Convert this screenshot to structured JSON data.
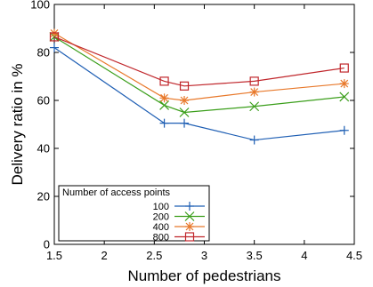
{
  "chart_data": {
    "type": "line",
    "title": "",
    "xlabel": "Number of pedestrians",
    "ylabel": "Delivery ratio in %",
    "xlim": [
      1.5,
      4.5
    ],
    "ylim": [
      0,
      100
    ],
    "xticks": [
      1.5,
      2,
      2.5,
      3,
      3.5,
      4,
      4.5
    ],
    "xtick_labels": [
      "1.5",
      "2",
      "2.5",
      "3",
      "3.5",
      "4",
      "4.5"
    ],
    "yticks": [
      0,
      20,
      40,
      60,
      80,
      100
    ],
    "ytick_labels": [
      "0",
      "20",
      "40",
      "60",
      "80",
      "100"
    ],
    "grid": false,
    "legend": {
      "title": "Number of access points",
      "placement": "bottom-left"
    },
    "series": [
      {
        "name": "100",
        "color": "#1f5fb4",
        "marker": "plus",
        "x": [
          1.5,
          2.6,
          2.8,
          3.5,
          4.4
        ],
        "y": [
          82,
          50.5,
          50.5,
          43.5,
          47.5
        ]
      },
      {
        "name": "200",
        "color": "#3a9e1a",
        "marker": "x",
        "x": [
          1.5,
          2.6,
          2.8,
          3.5,
          4.4
        ],
        "y": [
          86.5,
          58,
          55,
          57.5,
          61.5
        ]
      },
      {
        "name": "400",
        "color": "#e8782a",
        "marker": "star",
        "x": [
          1.5,
          2.6,
          2.8,
          3.5,
          4.4
        ],
        "y": [
          88,
          61,
          60,
          63.5,
          67
        ]
      },
      {
        "name": "800",
        "color": "#c0262b",
        "marker": "square",
        "x": [
          1.5,
          2.6,
          2.8,
          3.5,
          4.4
        ],
        "y": [
          86.5,
          68,
          66,
          68,
          73.5
        ]
      }
    ]
  }
}
